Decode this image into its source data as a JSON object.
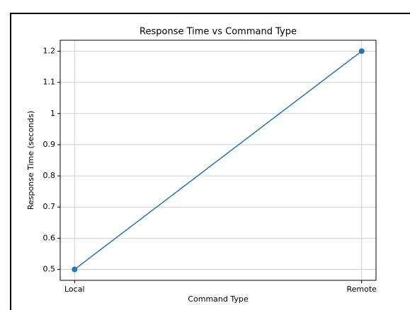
{
  "chart_data": {
    "type": "line",
    "title": "Response Time vs Command Type",
    "x_label": "Command Type",
    "y_label": "Response Time (seconds)",
    "categories": [
      "Local",
      "Remote"
    ],
    "values": [
      0.5,
      1.2
    ],
    "color": "#1f77b4",
    "ylim": [
      0.465,
      1.235
    ],
    "yticks": [
      0.5,
      0.6,
      0.7,
      0.8,
      0.9,
      1.0,
      1.1,
      1.2
    ],
    "grid": true
  }
}
